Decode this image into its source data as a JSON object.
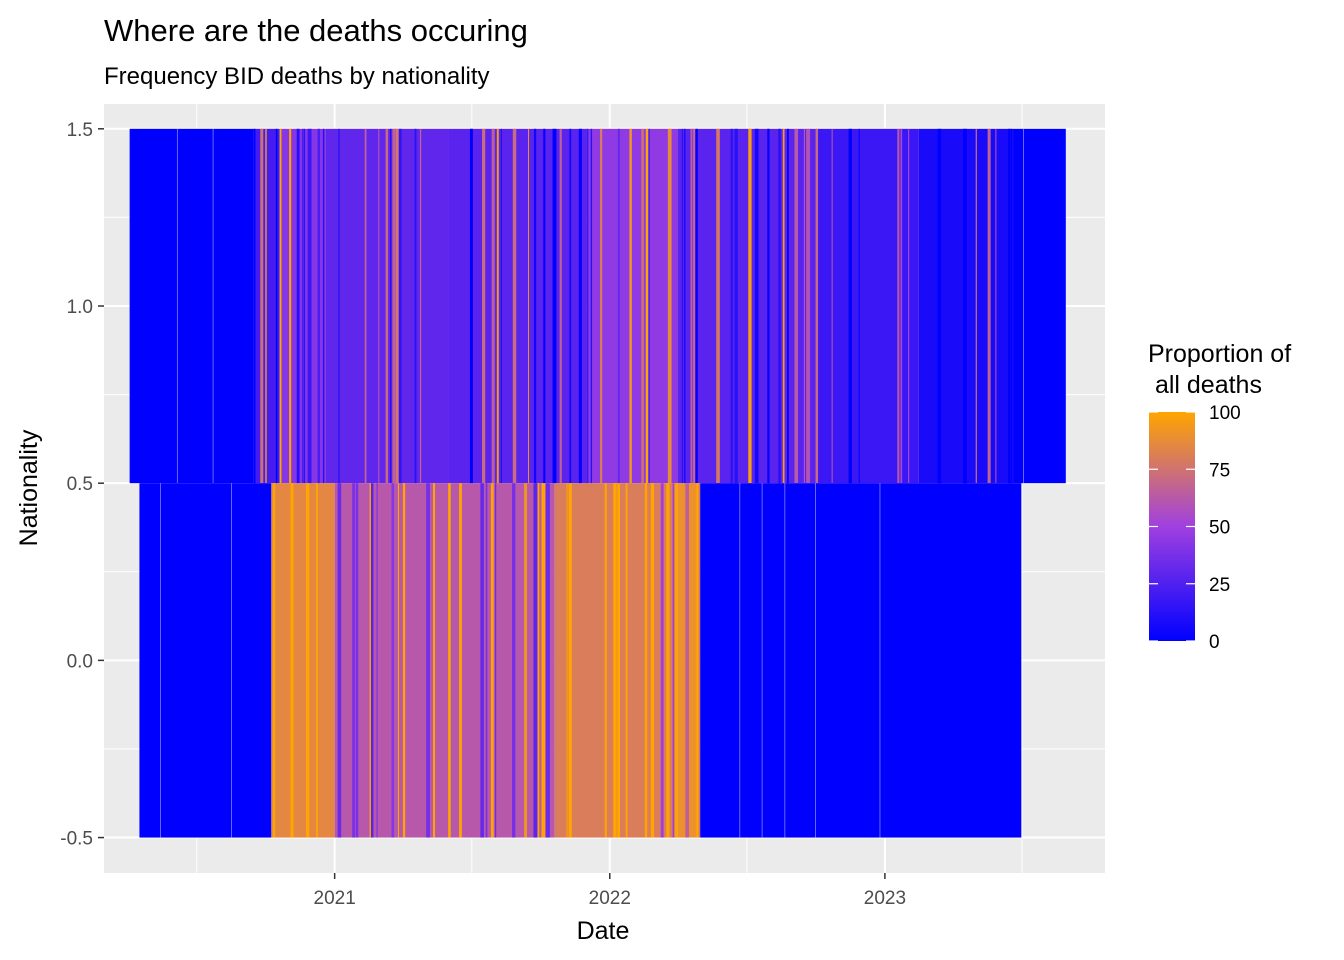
{
  "chart_data": {
    "type": "heatmap",
    "title": "Where are the deaths occuring",
    "subtitle": "Frequency BID deaths by nationality",
    "xlabel": "Date",
    "ylabel": "Nationality",
    "x_ticks": [
      "2021",
      "2022",
      "2023"
    ],
    "y_ticks": [
      "-0.5",
      "0.0",
      "0.5",
      "1.0",
      "1.5"
    ],
    "ylim": [
      -0.6,
      1.57
    ],
    "xlim": [
      "2020-03-01",
      "2023-10-20"
    ],
    "grid": true,
    "legend": {
      "title_lines": [
        "Proportion of",
        " all deaths"
      ],
      "ticks": [
        "0",
        "25",
        "50",
        "75",
        "100"
      ],
      "range": [
        0,
        100
      ],
      "position": "right",
      "low_color": "#0000FF",
      "mid_color": "#A040E0",
      "high_color": "#FFA500"
    },
    "colors": {
      "panel_bg": "#EBEBEB",
      "grid": "#FFFFFF",
      "low": "#0000FF",
      "high": "#FFA500"
    },
    "series": [
      {
        "y_center": 1,
        "tile_height": 1,
        "date_range": [
          "2020-04-04",
          "2023-08-29"
        ],
        "bands": [
          {
            "start": "2020-04-04",
            "end": "2020-09-15",
            "value": 0
          },
          {
            "start": "2020-09-15",
            "end": "2020-10-20",
            "value": 22
          },
          {
            "start": "2020-10-20",
            "end": "2020-12-20",
            "value": 42
          },
          {
            "start": "2020-12-20",
            "end": "2021-06-01",
            "value": 30
          },
          {
            "start": "2021-06-01",
            "end": "2021-12-01",
            "value": 28
          },
          {
            "start": "2021-12-01",
            "end": "2022-04-01",
            "value": 45
          },
          {
            "start": "2022-04-01",
            "end": "2022-10-01",
            "value": 28
          },
          {
            "start": "2022-10-01",
            "end": "2023-02-15",
            "value": 18
          },
          {
            "start": "2023-02-15",
            "end": "2023-06-20",
            "value": 8
          },
          {
            "start": "2023-06-20",
            "end": "2023-08-29",
            "value": 0
          }
        ]
      },
      {
        "y_center": 0,
        "tile_height": 1,
        "date_range": [
          "2020-04-17",
          "2023-07-01"
        ],
        "bands": [
          {
            "start": "2020-04-17",
            "end": "2020-10-09",
            "value": 0
          },
          {
            "start": "2020-10-09",
            "end": "2021-01-01",
            "value": 85
          },
          {
            "start": "2021-01-01",
            "end": "2021-10-20",
            "value": 62
          },
          {
            "start": "2021-10-20",
            "end": "2022-04-01",
            "value": 80
          },
          {
            "start": "2022-04-01",
            "end": "2022-05-01",
            "value": 90
          },
          {
            "start": "2022-05-01",
            "end": "2023-07-01",
            "value": 0
          }
        ]
      }
    ]
  }
}
